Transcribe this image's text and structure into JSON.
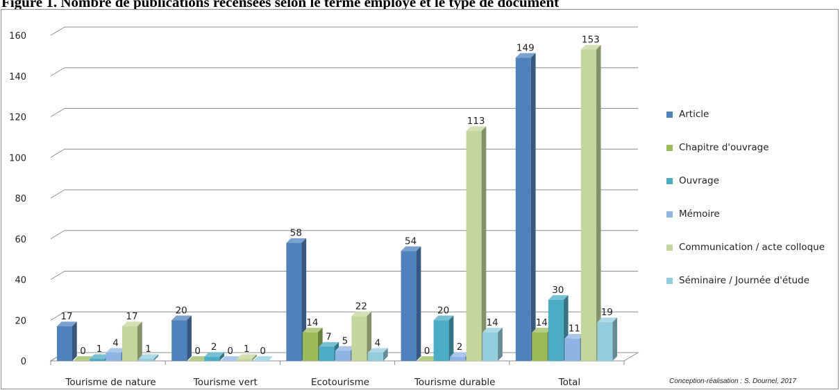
{
  "figure": {
    "heading": "Figure 1. Nombre de publications recensées selon le terme employé et le type de document",
    "credit": "Conception-réalisation : S. Dournel, 2017"
  },
  "chart_data": {
    "type": "bar",
    "style": "3d-clustered-column",
    "categories": [
      "Tourisme de nature",
      "Tourisme vert",
      "Ecotourisme",
      "Tourisme durable",
      "Total"
    ],
    "series": [
      {
        "name": "Article",
        "color": "#4f81bd",
        "values": [
          17,
          20,
          58,
          54,
          149
        ]
      },
      {
        "name": "Chapitre d'ouvrage",
        "color": "#9bbb59",
        "values": [
          0,
          0,
          14,
          0,
          14
        ]
      },
      {
        "name": "Ouvrage",
        "color": "#4bacc6",
        "values": [
          1,
          2,
          7,
          20,
          30
        ]
      },
      {
        "name": "Mémoire",
        "color": "#8eb4e3",
        "values": [
          4,
          0,
          5,
          2,
          11
        ]
      },
      {
        "name": "Communication / acte colloque",
        "color": "#c3d69b",
        "values": [
          17,
          1,
          22,
          113,
          153
        ]
      },
      {
        "name": "Séminaire / Journée d'étude",
        "color": "#93cddd",
        "values": [
          1,
          0,
          4,
          14,
          19
        ]
      }
    ],
    "ylim": [
      0,
      160
    ],
    "yticks": [
      0,
      20,
      40,
      60,
      80,
      100,
      120,
      140,
      160
    ],
    "grid": true,
    "data_labels": true,
    "legend_position": "right",
    "xlabel": "",
    "ylabel": ""
  }
}
